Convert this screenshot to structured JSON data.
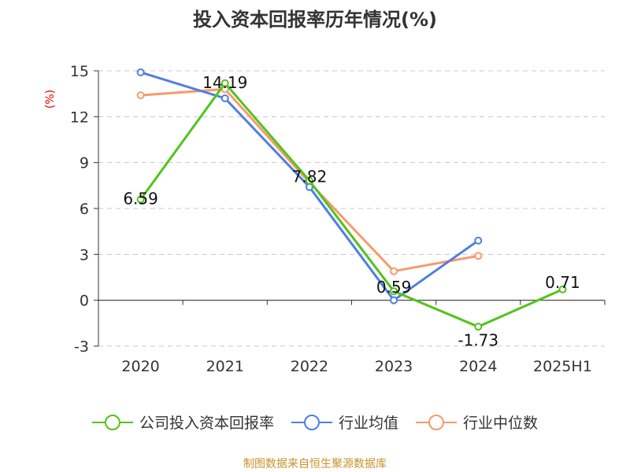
{
  "chart_data": {
    "type": "line",
    "title": "投入资本回报率历年情况(%)",
    "ylabel": "(%)",
    "categories": [
      "2020",
      "2021",
      "2022",
      "2023",
      "2024",
      "2025H1"
    ],
    "ylim": [
      -3,
      15
    ],
    "yticks": [
      -3,
      0,
      3,
      6,
      9,
      12,
      15
    ],
    "grid": true,
    "legend_position": "bottom",
    "series": [
      {
        "name": "公司投入资本回报率",
        "color": "#52c41a",
        "values": [
          6.59,
          14.19,
          7.82,
          0.59,
          -1.73,
          0.71
        ],
        "labels": [
          "6.59",
          "14.19",
          "7.82",
          "0.59",
          "-1.73",
          "0.71"
        ]
      },
      {
        "name": "行业均值",
        "color": "#4f7fe0",
        "values": [
          14.9,
          13.2,
          7.4,
          0.0,
          3.9,
          null
        ]
      },
      {
        "name": "行业中位数",
        "color": "#f89a6a",
        "values": [
          13.4,
          13.8,
          7.7,
          1.9,
          2.9,
          null
        ]
      }
    ]
  },
  "source_text": "制图数据来自恒生聚源数据库"
}
